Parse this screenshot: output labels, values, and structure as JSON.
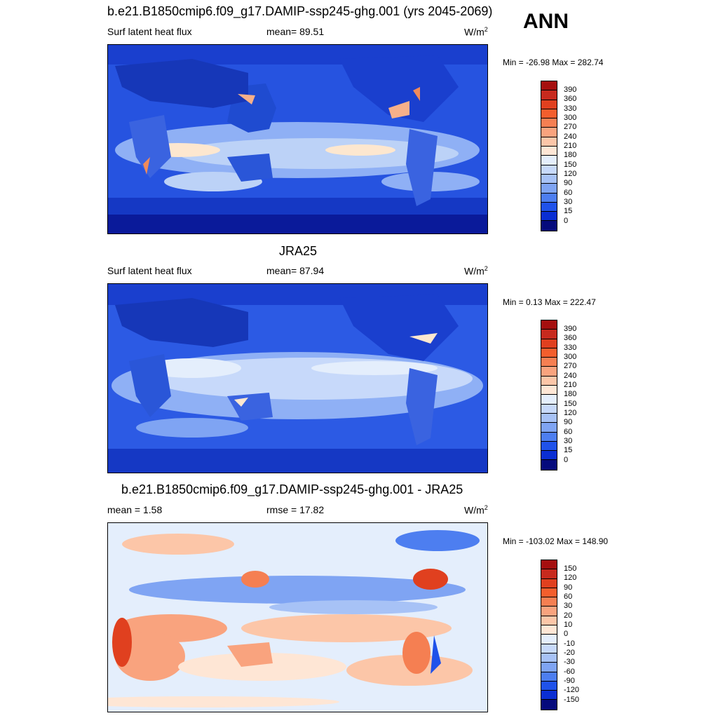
{
  "season": "ANN",
  "colors": {
    "ocean_bg": "#1e4bd8",
    "low": "#0a1a9a",
    "mid_blue": "#3f6ef0",
    "light_blue": "#bcd2f7",
    "cream": "#fde7cf",
    "orange": "#f08a5a",
    "red": "#c8281e"
  },
  "flux_colorbar": {
    "colors": [
      "#a50f0f",
      "#c72a1e",
      "#e0401f",
      "#f35e2d",
      "#f57f52",
      "#f9a37e",
      "#fcc6a8",
      "#fee6d5",
      "#e4eefc",
      "#c7d9fa",
      "#a7c2f6",
      "#7fa4f3",
      "#4d7ef0",
      "#1f52ea",
      "#0a2ed3",
      "#0a14a6",
      "#050a7c"
    ],
    "labels": [
      "390",
      "360",
      "330",
      "300",
      "270",
      "240",
      "210",
      "180",
      "150",
      "120",
      "90",
      "60",
      "30",
      "15",
      "0"
    ]
  },
  "diff_colorbar": {
    "colors": [
      "#a50f0f",
      "#c72a1e",
      "#e0401f",
      "#f35e2d",
      "#f57f52",
      "#f9a37e",
      "#fcc6a8",
      "#fee6d5",
      "#e4eefc",
      "#c7d9fa",
      "#a7c2f6",
      "#7fa4f3",
      "#4d7ef0",
      "#1f52ea",
      "#0a2ed3",
      "#0a14a6",
      "#050a7c"
    ],
    "labels": [
      "150",
      "120",
      "90",
      "60",
      "30",
      "20",
      "10",
      "0",
      "-10",
      "-20",
      "-30",
      "-60",
      "-90",
      "-120",
      "-150"
    ]
  },
  "panel1": {
    "title": "b.e21.B1850cmip6.f09_g17.DAMIP-ssp245-ghg.001 (yrs 2045-2069)",
    "variable": "Surf latent heat flux",
    "mean": "mean=  89.51",
    "units": "W/m",
    "units_sup": "2",
    "range": "Min = -26.98 Max = 282.74"
  },
  "panel2": {
    "title": "JRA25",
    "variable": "Surf latent heat flux",
    "mean": "mean=  87.94",
    "units": "W/m",
    "units_sup": "2",
    "range": "Min =   0.13 Max = 222.47"
  },
  "panel3": {
    "title": "b.e21.B1850cmip6.f09_g17.DAMIP-ssp245-ghg.001 - JRA25",
    "mean": "mean =   1.58",
    "rmse": "rmse =  17.82",
    "units": "W/m",
    "units_sup": "2",
    "range": "Min = -103.02 Max = 148.90"
  }
}
